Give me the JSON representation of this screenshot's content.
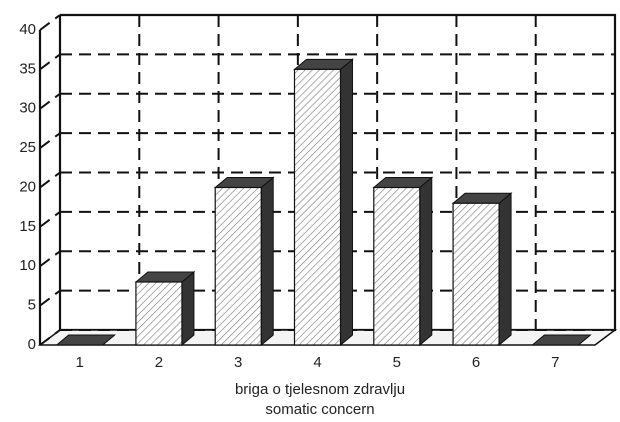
{
  "chart_data": {
    "type": "bar3d",
    "categories": [
      "1",
      "2",
      "3",
      "4",
      "5",
      "6",
      "7"
    ],
    "values": [
      0,
      8,
      20,
      35,
      20,
      18,
      0
    ],
    "ylim": [
      0,
      40
    ],
    "yticks": [
      0,
      5,
      10,
      15,
      20,
      25,
      30,
      35,
      40
    ],
    "grid": true,
    "color": "#ffffff",
    "xlabel": [
      "briga o tjelesnom zdravlju",
      "somatic concern"
    ]
  }
}
